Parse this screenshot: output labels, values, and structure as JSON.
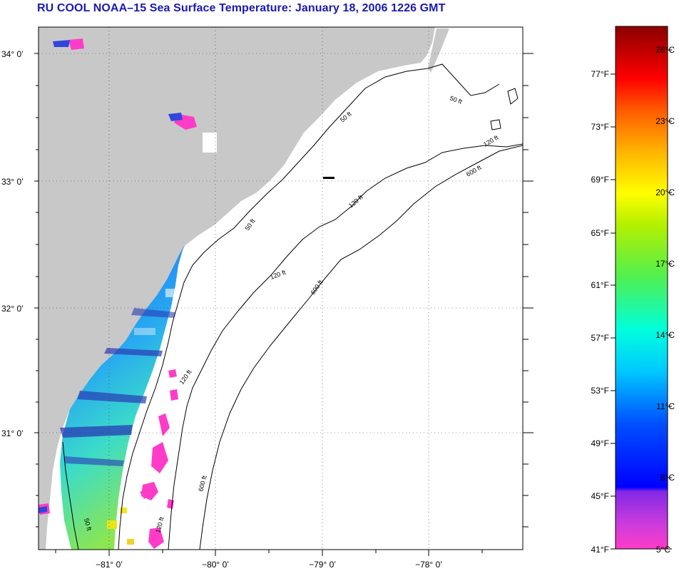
{
  "title": "RU COOL  NOAA–15  Sea Surface Temperature:  January 18, 2006 1226 GMT",
  "map": {
    "lat_labels": [
      "34° 0’",
      "33° 0’",
      "32° 0’",
      "31° 0’"
    ],
    "lon_labels": [
      "−81° 0’",
      "−80° 0’",
      "−79° 0’",
      "−78° 0’"
    ],
    "contour_labels": [
      "50 ft",
      "50 ft",
      "120 ft",
      "120 ft",
      "600 ft",
      "50 ft",
      "120 ft",
      "600 ft",
      "120 ft",
      "600 ft",
      "50 ft",
      "120 ft"
    ],
    "colors": {
      "land": "#c8c8c8",
      "ocean_nodata": "#ffffff"
    }
  },
  "colorbar": {
    "fahrenheit_labels": [
      "77°F",
      "73°F",
      "69°F",
      "65°F",
      "61°F",
      "57°F",
      "53°F",
      "49°F",
      "45°F",
      "41°F"
    ],
    "celsius_labels": [
      "26°C",
      "23°C",
      "20°C",
      "17°C",
      "14°C",
      "11°C",
      "8°C",
      "5°C"
    ]
  }
}
